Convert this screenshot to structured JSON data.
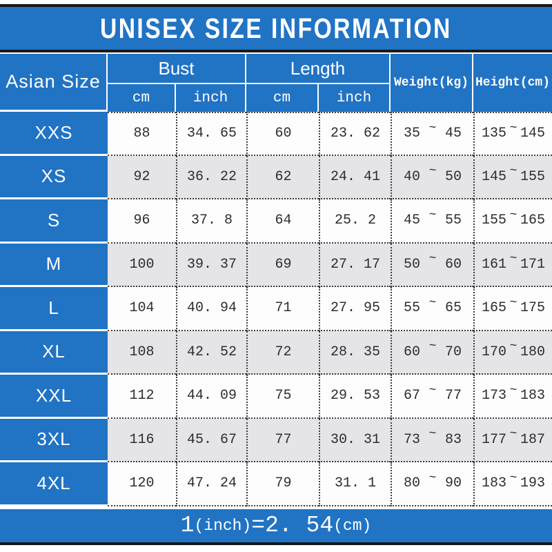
{
  "title": "UNISEX SIZE INFORMATION",
  "header": {
    "size_col": "Asian Size",
    "bust": "Bust",
    "length": "Length",
    "cm": "cm",
    "inch": "inch",
    "weight": "Weight(kg)",
    "height": "Height(cm)"
  },
  "tilde": "~",
  "rows": [
    {
      "size": "XXS",
      "bust_cm": "88",
      "bust_inch": "34. 65",
      "length_cm": "60",
      "length_inch": "23. 62",
      "weight_min": "35",
      "weight_max": "45",
      "height_min": "135",
      "height_max": "145"
    },
    {
      "size": "XS",
      "bust_cm": "92",
      "bust_inch": "36. 22",
      "length_cm": "62",
      "length_inch": "24. 41",
      "weight_min": "40",
      "weight_max": "50",
      "height_min": "145",
      "height_max": "155"
    },
    {
      "size": "S",
      "bust_cm": "96",
      "bust_inch": "37. 8",
      "length_cm": "64",
      "length_inch": "25. 2",
      "weight_min": "45",
      "weight_max": "55",
      "height_min": "155",
      "height_max": "165"
    },
    {
      "size": "M",
      "bust_cm": "100",
      "bust_inch": "39. 37",
      "length_cm": "69",
      "length_inch": "27. 17",
      "weight_min": "50",
      "weight_max": "60",
      "height_min": "161",
      "height_max": "171"
    },
    {
      "size": "L",
      "bust_cm": "104",
      "bust_inch": "40. 94",
      "length_cm": "71",
      "length_inch": "27. 95",
      "weight_min": "55",
      "weight_max": "65",
      "height_min": "165",
      "height_max": "175"
    },
    {
      "size": "XL",
      "bust_cm": "108",
      "bust_inch": "42. 52",
      "length_cm": "72",
      "length_inch": "28. 35",
      "weight_min": "60",
      "weight_max": "70",
      "height_min": "170",
      "height_max": "180"
    },
    {
      "size": "XXL",
      "bust_cm": "112",
      "bust_inch": "44. 09",
      "length_cm": "75",
      "length_inch": "29. 53",
      "weight_min": "67",
      "weight_max": "77",
      "height_min": "173",
      "height_max": "183"
    },
    {
      "size": "3XL",
      "bust_cm": "116",
      "bust_inch": "45. 67",
      "length_cm": "77",
      "length_inch": "30. 31",
      "weight_min": "73",
      "weight_max": "83",
      "height_min": "177",
      "height_max": "187"
    },
    {
      "size": "4XL",
      "bust_cm": "120",
      "bust_inch": "47. 24",
      "length_cm": "79",
      "length_inch": "31. 1",
      "weight_min": "80",
      "weight_max": "90",
      "height_min": "183",
      "height_max": "193"
    }
  ],
  "footer": {
    "one": "1",
    "inch_label": "(inch)",
    "equals": "=2. 54",
    "cm_label": "(cm)"
  },
  "colors": {
    "blue": "#2173c4",
    "gray_row": "#e5e4e6",
    "white_row": "#fdfdfd",
    "black_line": "#161616",
    "dotted_border": "#3c3c3c"
  },
  "chart_data": {
    "type": "table",
    "title": "UNISEX SIZE INFORMATION",
    "columns": [
      "Asian Size",
      "Bust cm",
      "Bust inch",
      "Length cm",
      "Length inch",
      "Weight(kg)",
      "Height(cm)"
    ],
    "rows": [
      [
        "XXS",
        88,
        34.65,
        60,
        23.62,
        "35~45",
        "135~145"
      ],
      [
        "XS",
        92,
        36.22,
        62,
        24.41,
        "40~50",
        "145~155"
      ],
      [
        "S",
        96,
        37.8,
        64,
        25.2,
        "45~55",
        "155~165"
      ],
      [
        "M",
        100,
        39.37,
        69,
        27.17,
        "50~60",
        "161~171"
      ],
      [
        "L",
        104,
        40.94,
        71,
        27.95,
        "55~65",
        "165~175"
      ],
      [
        "XL",
        108,
        42.52,
        72,
        28.35,
        "60~70",
        "170~180"
      ],
      [
        "XXL",
        112,
        44.09,
        75,
        29.53,
        "67~77",
        "173~183"
      ],
      [
        "3XL",
        116,
        45.67,
        77,
        30.31,
        "73~83",
        "177~187"
      ],
      [
        "4XL",
        120,
        47.24,
        79,
        31.1,
        "80~90",
        "183~193"
      ]
    ],
    "note": "1(inch)=2.54(cm)"
  }
}
